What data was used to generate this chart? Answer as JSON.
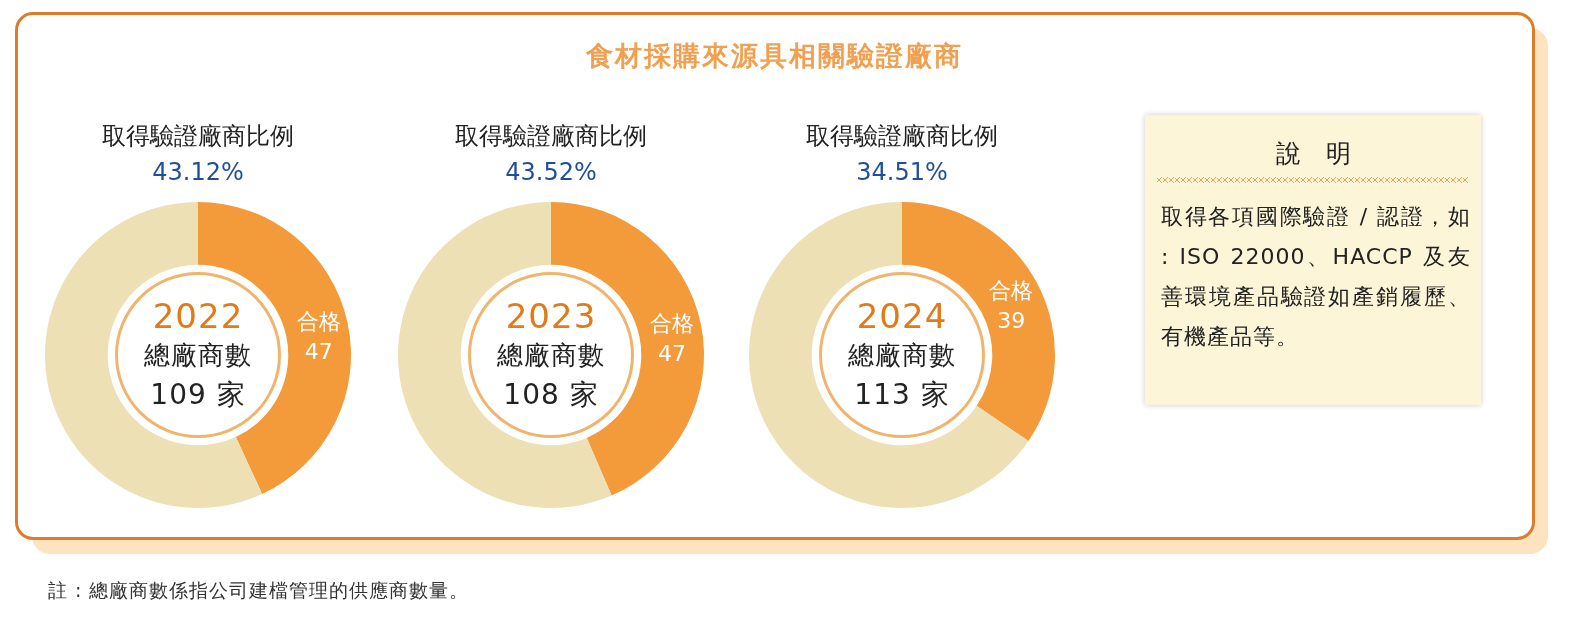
{
  "chart_data": [
    {
      "type": "other",
      "title": "食材採購來源具相關驗證廠商",
      "annotations": [
        "註 : 總廠商數係指公司建檔管理的供應商數量。"
      ]
    },
    {
      "type": "donut",
      "title": "取得驗證廠商比例",
      "subtitle": "43.12%",
      "categories": [
        "合格",
        null
      ],
      "values": [
        47,
        62
      ],
      "colors": [
        "#f39a3b",
        "#ede0b5"
      ],
      "value_labels": [
        "47",
        null
      ],
      "annotations": [
        "2022",
        "總廠商數",
        "109 家"
      ]
    },
    {
      "type": "donut",
      "title": "取得驗證廠商比例",
      "subtitle": "43.52%",
      "categories": [
        "合格",
        null
      ],
      "values": [
        47,
        61
      ],
      "colors": [
        "#f39a3b",
        "#ede0b5"
      ],
      "value_labels": [
        "47",
        null
      ],
      "annotations": [
        "2023",
        "總廠商數",
        "108 家"
      ]
    },
    {
      "type": "donut",
      "title": "取得驗證廠商比例",
      "subtitle": "34.51%",
      "categories": [
        "合格",
        null
      ],
      "values": [
        39,
        74
      ],
      "colors": [
        "#f39a3b",
        "#ede0b5"
      ],
      "value_labels": [
        "39",
        null
      ],
      "annotations": [
        "2024",
        "總廠商數",
        "113 家"
      ]
    },
    {
      "type": "other",
      "title": "說　明",
      "annotations": [
        "取得各項國際驗證 / 認證，如 : ISO 22000、HACCP 及友善環境產品驗證如產銷履歷、有機產品等。"
      ]
    }
  ]
}
